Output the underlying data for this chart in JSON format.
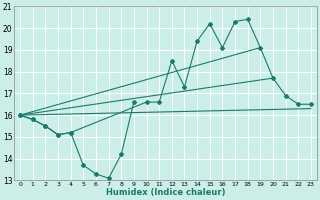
{
  "xlabel": "Humidex (Indice chaleur)",
  "bg_color": "#cceee8",
  "grid_color": "#aadddd",
  "line_color": "#1a7a6e",
  "xlim": [
    -0.5,
    23.5
  ],
  "ylim": [
    13,
    21
  ],
  "xticks": [
    0,
    1,
    2,
    3,
    4,
    5,
    6,
    7,
    8,
    9,
    10,
    11,
    12,
    13,
    14,
    15,
    16,
    17,
    18,
    19,
    20,
    21,
    22,
    23
  ],
  "yticks": [
    13,
    14,
    15,
    16,
    17,
    18,
    19,
    20,
    21
  ],
  "series_zigzag_x": [
    0,
    1,
    2,
    3,
    4,
    5,
    6,
    7,
    8,
    9
  ],
  "series_zigzag_y": [
    16.0,
    15.8,
    15.5,
    15.1,
    15.2,
    13.7,
    13.3,
    13.1,
    14.2,
    16.6
  ],
  "series_main_x": [
    0,
    1,
    2,
    3,
    4,
    10,
    11,
    12,
    13,
    14,
    15,
    16,
    17,
    18,
    19,
    20,
    21,
    22,
    23
  ],
  "series_main_y": [
    16.0,
    15.8,
    15.5,
    15.1,
    15.2,
    16.6,
    16.6,
    18.5,
    17.3,
    19.4,
    20.2,
    19.1,
    20.3,
    20.4,
    19.1,
    17.7,
    16.9,
    16.5,
    16.5
  ],
  "trend1_x": [
    0,
    23
  ],
  "trend1_y": [
    16.0,
    16.3
  ],
  "trend2_x": [
    0,
    20
  ],
  "trend2_y": [
    16.0,
    17.7
  ],
  "trend3_x": [
    0,
    19
  ],
  "trend3_y": [
    16.0,
    19.1
  ]
}
